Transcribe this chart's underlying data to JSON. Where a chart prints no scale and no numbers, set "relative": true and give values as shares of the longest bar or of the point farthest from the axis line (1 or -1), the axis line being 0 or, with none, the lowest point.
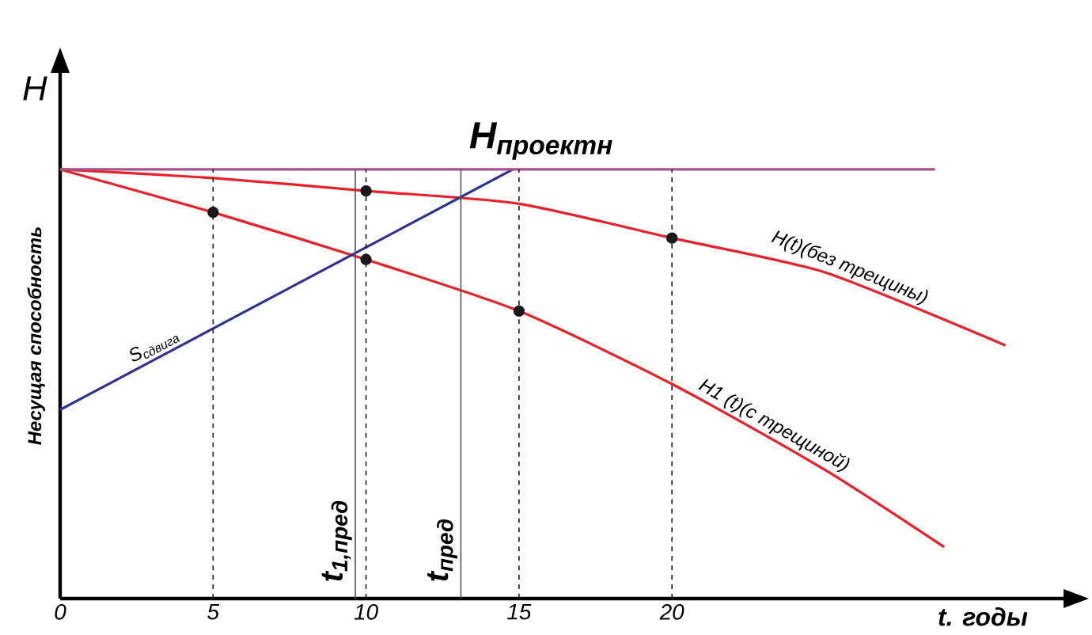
{
  "chart_data": {
    "type": "line",
    "relative": true,
    "xlabel": "t. годы",
    "ylabel": "Несущая способность",
    "annotations": [
      "H"
    ],
    "xlim": [
      0,
      32.8
    ],
    "xticks": [
      0,
      5,
      10,
      15,
      20
    ],
    "tick_labels": "x",
    "series": [
      {
        "name": "H(t)(без трещины)",
        "color": "#e8202a",
        "x": [
          0,
          5,
          10,
          15,
          20,
          25,
          30.9
        ],
        "values": [
          1,
          0.98,
          0.95,
          0.92,
          0.84,
          0.76,
          0.59
        ]
      },
      {
        "name": "H1 (t)(с трещиной)",
        "color": "#e8202a",
        "x": [
          0,
          5,
          10,
          15,
          20,
          25,
          28.9
        ],
        "values": [
          1,
          0.9,
          0.79,
          0.67,
          0.5,
          0.3,
          0.12
        ]
      },
      {
        "name": "S$_{сдвига}$",
        "color": "#2e3192",
        "x": [
          0,
          14.8
        ],
        "values": [
          0.44,
          1
        ]
      },
      {
        "name": "H$_{проектн}$",
        "color": "#a8508c",
        "x": [
          0,
          28.6
        ],
        "values": [
          1,
          1
        ]
      },
      {
        "type": "scatter",
        "marker": "circle",
        "color": "#1a1a1a",
        "x": [
          5,
          10,
          10,
          15,
          20
        ],
        "values": [
          0.9,
          0.95,
          0.79,
          0.67,
          0.84
        ]
      }
    ],
    "ref_lines": [
      {
        "axis": "x",
        "value": 9.65,
        "label": "t$_{1,пред}$",
        "color": "#555555",
        "line_style": "solid"
      },
      {
        "axis": "x",
        "value": 13.1,
        "label": "t$_{пред}$",
        "color": "#555555",
        "line_style": "solid"
      },
      {
        "axis": "x",
        "value": 5,
        "color": "#1a1a1a",
        "line_style": "dashed"
      },
      {
        "axis": "x",
        "value": 10,
        "color": "#1a1a1a",
        "line_style": "dashed"
      },
      {
        "axis": "x",
        "value": 15,
        "color": "#1a1a1a",
        "line_style": "dashed"
      },
      {
        "axis": "x",
        "value": 20,
        "color": "#1a1a1a",
        "line_style": "dashed"
      }
    ]
  }
}
